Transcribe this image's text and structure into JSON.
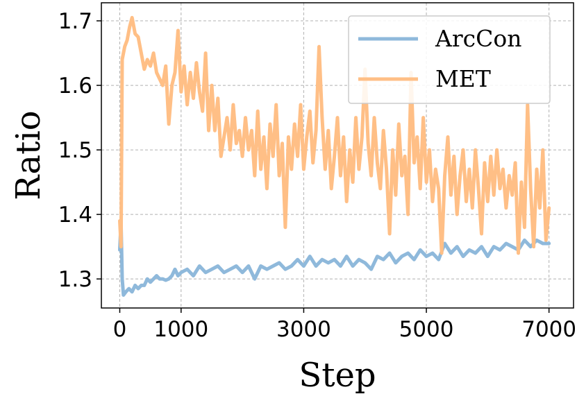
{
  "chart_data": {
    "type": "line",
    "xlabel": "Step",
    "ylabel": "Ratio",
    "xlim": [
      -300,
      7400
    ],
    "ylim": [
      1.255,
      1.728
    ],
    "x_ticks": [
      0,
      1000,
      3000,
      5000,
      7000
    ],
    "x_tick_labels": [
      "0",
      "1000",
      "3000",
      "5000",
      "7000"
    ],
    "y_ticks": [
      1.3,
      1.4,
      1.5,
      1.6,
      1.7
    ],
    "y_tick_labels": [
      "1.3",
      "1.4",
      "1.5",
      "1.6",
      "1.7"
    ],
    "grid": true,
    "legend_position": "top-right",
    "series": [
      {
        "name": "ArcCon",
        "color": "#8fb9db",
        "points": [
          [
            0,
            1.345
          ],
          [
            20,
            1.39
          ],
          [
            40,
            1.3
          ],
          [
            60,
            1.275
          ],
          [
            100,
            1.28
          ],
          [
            150,
            1.285
          ],
          [
            200,
            1.28
          ],
          [
            250,
            1.29
          ],
          [
            300,
            1.285
          ],
          [
            350,
            1.29
          ],
          [
            400,
            1.29
          ],
          [
            450,
            1.3
          ],
          [
            500,
            1.295
          ],
          [
            550,
            1.3
          ],
          [
            600,
            1.305
          ],
          [
            650,
            1.3
          ],
          [
            700,
            1.3
          ],
          [
            750,
            1.298
          ],
          [
            800,
            1.3
          ],
          [
            850,
            1.305
          ],
          [
            900,
            1.315
          ],
          [
            950,
            1.305
          ],
          [
            1000,
            1.31
          ],
          [
            1100,
            1.315
          ],
          [
            1200,
            1.305
          ],
          [
            1300,
            1.32
          ],
          [
            1400,
            1.31
          ],
          [
            1500,
            1.315
          ],
          [
            1600,
            1.32
          ],
          [
            1700,
            1.31
          ],
          [
            1800,
            1.315
          ],
          [
            1900,
            1.32
          ],
          [
            2000,
            1.31
          ],
          [
            2100,
            1.32
          ],
          [
            2200,
            1.3
          ],
          [
            2300,
            1.32
          ],
          [
            2400,
            1.315
          ],
          [
            2500,
            1.32
          ],
          [
            2600,
            1.325
          ],
          [
            2700,
            1.315
          ],
          [
            2800,
            1.32
          ],
          [
            2900,
            1.33
          ],
          [
            3000,
            1.32
          ],
          [
            3100,
            1.335
          ],
          [
            3200,
            1.32
          ],
          [
            3300,
            1.33
          ],
          [
            3400,
            1.325
          ],
          [
            3500,
            1.33
          ],
          [
            3600,
            1.32
          ],
          [
            3700,
            1.335
          ],
          [
            3800,
            1.32
          ],
          [
            3900,
            1.33
          ],
          [
            4000,
            1.325
          ],
          [
            4100,
            1.315
          ],
          [
            4200,
            1.335
          ],
          [
            4300,
            1.33
          ],
          [
            4400,
            1.34
          ],
          [
            4500,
            1.325
          ],
          [
            4600,
            1.335
          ],
          [
            4700,
            1.34
          ],
          [
            4800,
            1.33
          ],
          [
            4900,
            1.345
          ],
          [
            5000,
            1.335
          ],
          [
            5100,
            1.34
          ],
          [
            5200,
            1.33
          ],
          [
            5300,
            1.355
          ],
          [
            5400,
            1.34
          ],
          [
            5500,
            1.35
          ],
          [
            5600,
            1.335
          ],
          [
            5700,
            1.345
          ],
          [
            5800,
            1.34
          ],
          [
            5900,
            1.35
          ],
          [
            6000,
            1.335
          ],
          [
            6100,
            1.35
          ],
          [
            6200,
            1.345
          ],
          [
            6300,
            1.355
          ],
          [
            6400,
            1.35
          ],
          [
            6500,
            1.345
          ],
          [
            6600,
            1.36
          ],
          [
            6700,
            1.35
          ],
          [
            6800,
            1.36
          ],
          [
            6900,
            1.355
          ],
          [
            7000,
            1.355
          ]
        ]
      },
      {
        "name": "MET",
        "color": "#ffbf86",
        "points": [
          [
            0,
            1.39
          ],
          [
            20,
            1.35
          ],
          [
            40,
            1.64
          ],
          [
            80,
            1.66
          ],
          [
            120,
            1.67
          ],
          [
            160,
            1.69
          ],
          [
            200,
            1.705
          ],
          [
            250,
            1.68
          ],
          [
            300,
            1.675
          ],
          [
            350,
            1.65
          ],
          [
            400,
            1.625
          ],
          [
            450,
            1.64
          ],
          [
            500,
            1.63
          ],
          [
            550,
            1.65
          ],
          [
            600,
            1.62
          ],
          [
            650,
            1.61
          ],
          [
            700,
            1.6
          ],
          [
            750,
            1.63
          ],
          [
            800,
            1.54
          ],
          [
            850,
            1.6
          ],
          [
            900,
            1.62
          ],
          [
            950,
            1.685
          ],
          [
            1000,
            1.59
          ],
          [
            1050,
            1.63
          ],
          [
            1100,
            1.57
          ],
          [
            1150,
            1.62
          ],
          [
            1200,
            1.58
          ],
          [
            1250,
            1.635
          ],
          [
            1300,
            1.59
          ],
          [
            1350,
            1.56
          ],
          [
            1400,
            1.65
          ],
          [
            1450,
            1.53
          ],
          [
            1500,
            1.6
          ],
          [
            1550,
            1.53
          ],
          [
            1600,
            1.58
          ],
          [
            1650,
            1.49
          ],
          [
            1700,
            1.52
          ],
          [
            1750,
            1.55
          ],
          [
            1800,
            1.5
          ],
          [
            1850,
            1.57
          ],
          [
            1900,
            1.51
          ],
          [
            1950,
            1.53
          ],
          [
            2000,
            1.49
          ],
          [
            2050,
            1.55
          ],
          [
            2100,
            1.5
          ],
          [
            2150,
            1.53
          ],
          [
            2200,
            1.46
          ],
          [
            2250,
            1.56
          ],
          [
            2300,
            1.47
          ],
          [
            2350,
            1.52
          ],
          [
            2400,
            1.44
          ],
          [
            2450,
            1.54
          ],
          [
            2500,
            1.49
          ],
          [
            2550,
            1.57
          ],
          [
            2600,
            1.46
          ],
          [
            2650,
            1.51
          ],
          [
            2700,
            1.38
          ],
          [
            2750,
            1.52
          ],
          [
            2800,
            1.47
          ],
          [
            2850,
            1.54
          ],
          [
            2900,
            1.49
          ],
          [
            2950,
            1.57
          ],
          [
            3000,
            1.47
          ],
          [
            3050,
            1.52
          ],
          [
            3100,
            1.56
          ],
          [
            3150,
            1.48
          ],
          [
            3200,
            1.53
          ],
          [
            3250,
            1.66
          ],
          [
            3300,
            1.55
          ],
          [
            3350,
            1.47
          ],
          [
            3400,
            1.53
          ],
          [
            3450,
            1.44
          ],
          [
            3500,
            1.49
          ],
          [
            3550,
            1.55
          ],
          [
            3600,
            1.46
          ],
          [
            3650,
            1.52
          ],
          [
            3700,
            1.42
          ],
          [
            3750,
            1.5
          ],
          [
            3800,
            1.45
          ],
          [
            3850,
            1.55
          ],
          [
            3900,
            1.47
          ],
          [
            3950,
            1.52
          ],
          [
            4000,
            1.625
          ],
          [
            4050,
            1.51
          ],
          [
            4100,
            1.46
          ],
          [
            4150,
            1.55
          ],
          [
            4200,
            1.48
          ],
          [
            4250,
            1.44
          ],
          [
            4300,
            1.53
          ],
          [
            4350,
            1.47
          ],
          [
            4400,
            1.37
          ],
          [
            4450,
            1.5
          ],
          [
            4500,
            1.43
          ],
          [
            4550,
            1.54
          ],
          [
            4600,
            1.46
          ],
          [
            4650,
            1.49
          ],
          [
            4700,
            1.4
          ],
          [
            4750,
            1.62
          ],
          [
            4800,
            1.48
          ],
          [
            4850,
            1.52
          ],
          [
            4900,
            1.44
          ],
          [
            4950,
            1.55
          ],
          [
            5000,
            1.45
          ],
          [
            5050,
            1.5
          ],
          [
            5100,
            1.42
          ],
          [
            5150,
            1.47
          ],
          [
            5200,
            1.44
          ],
          [
            5250,
            1.34
          ],
          [
            5300,
            1.46
          ],
          [
            5350,
            1.52
          ],
          [
            5400,
            1.43
          ],
          [
            5450,
            1.49
          ],
          [
            5500,
            1.4
          ],
          [
            5550,
            1.46
          ],
          [
            5600,
            1.5
          ],
          [
            5650,
            1.42
          ],
          [
            5700,
            1.47
          ],
          [
            5750,
            1.41
          ],
          [
            5800,
            1.5
          ],
          [
            5850,
            1.44
          ],
          [
            5900,
            1.37
          ],
          [
            5950,
            1.48
          ],
          [
            6000,
            1.42
          ],
          [
            6050,
            1.49
          ],
          [
            6100,
            1.43
          ],
          [
            6150,
            1.5
          ],
          [
            6200,
            1.44
          ],
          [
            6250,
            1.47
          ],
          [
            6300,
            1.41
          ],
          [
            6350,
            1.46
          ],
          [
            6400,
            1.43
          ],
          [
            6450,
            1.48
          ],
          [
            6500,
            1.34
          ],
          [
            6550,
            1.45
          ],
          [
            6600,
            1.38
          ],
          [
            6650,
            1.57
          ],
          [
            6700,
            1.44
          ],
          [
            6750,
            1.35
          ],
          [
            6800,
            1.47
          ],
          [
            6850,
            1.41
          ],
          [
            6900,
            1.5
          ],
          [
            6950,
            1.36
          ],
          [
            7000,
            1.41
          ]
        ]
      }
    ]
  }
}
